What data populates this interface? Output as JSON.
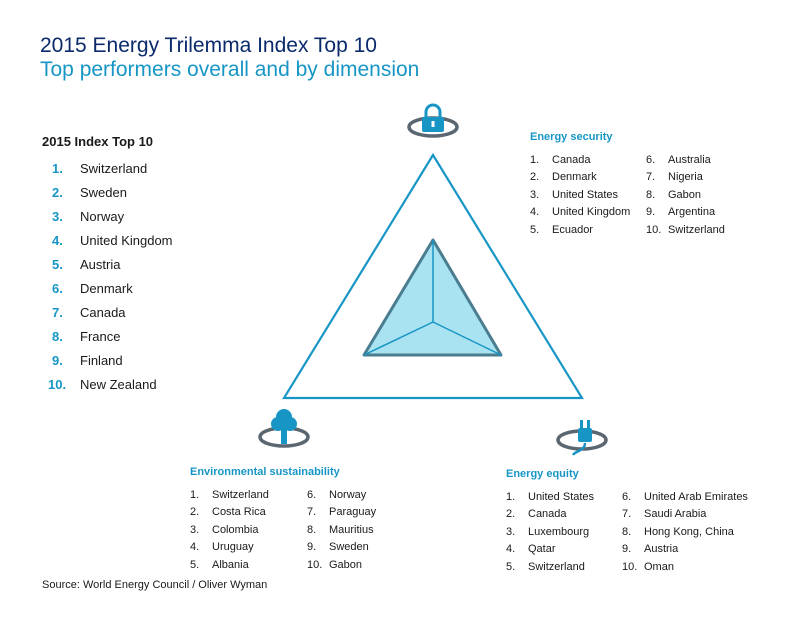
{
  "header": {
    "title": "2015 Energy Trilemma Index Top 10",
    "subtitle": "Top performers overall and by dimension"
  },
  "index_top10": {
    "heading": "2015 Index Top 10",
    "items": [
      {
        "num": "1.",
        "name": "Switzerland"
      },
      {
        "num": "2.",
        "name": "Sweden"
      },
      {
        "num": "3.",
        "name": "Norway"
      },
      {
        "num": "4.",
        "name": "United Kingdom"
      },
      {
        "num": "5.",
        "name": "Austria"
      },
      {
        "num": "6.",
        "name": "Denmark"
      },
      {
        "num": "7.",
        "name": "Canada"
      },
      {
        "num": "8.",
        "name": "France"
      },
      {
        "num": "9.",
        "name": "Finland"
      },
      {
        "num": "10.",
        "name": "New Zealand"
      }
    ]
  },
  "dimensions": {
    "security": {
      "title": "Energy security",
      "icon": "padlock-icon",
      "col1": [
        {
          "num": "1.",
          "name": "Canada"
        },
        {
          "num": "2.",
          "name": "Denmark"
        },
        {
          "num": "3.",
          "name": "United States"
        },
        {
          "num": "4.",
          "name": "United Kingdom"
        },
        {
          "num": "5.",
          "name": "Ecuador"
        }
      ],
      "col2": [
        {
          "num": "6.",
          "name": "Australia"
        },
        {
          "num": "7.",
          "name": "Nigeria"
        },
        {
          "num": "8.",
          "name": "Gabon"
        },
        {
          "num": "9.",
          "name": "Argentina"
        },
        {
          "num": "10.",
          "name": "Switzerland"
        }
      ]
    },
    "environment": {
      "title": "Environmental sustainability",
      "icon": "tree-icon",
      "col1": [
        {
          "num": "1.",
          "name": "Switzerland"
        },
        {
          "num": "2.",
          "name": "Costa Rica"
        },
        {
          "num": "3.",
          "name": "Colombia"
        },
        {
          "num": "4.",
          "name": "Uruguay"
        },
        {
          "num": "5.",
          "name": "Albania"
        }
      ],
      "col2": [
        {
          "num": "6.",
          "name": "Norway"
        },
        {
          "num": "7.",
          "name": "Paraguay"
        },
        {
          "num": "8.",
          "name": "Mauritius"
        },
        {
          "num": "9.",
          "name": "Sweden"
        },
        {
          "num": "10.",
          "name": "Gabon"
        }
      ]
    },
    "equity": {
      "title": "Energy equity",
      "icon": "plug-icon",
      "col1": [
        {
          "num": "1.",
          "name": "United States"
        },
        {
          "num": "2.",
          "name": "Canada"
        },
        {
          "num": "3.",
          "name": "Luxembourg"
        },
        {
          "num": "4.",
          "name": "Qatar"
        },
        {
          "num": "5.",
          "name": "Switzerland"
        }
      ],
      "col2": [
        {
          "num": "6.",
          "name": "United Arab Emirates"
        },
        {
          "num": "7.",
          "name": "Saudi Arabia"
        },
        {
          "num": "8.",
          "name": "Hong Kong, China"
        },
        {
          "num": "9.",
          "name": "Austria"
        },
        {
          "num": "10.",
          "name": "Oman"
        }
      ]
    }
  },
  "colors": {
    "title": "#0a2a6b",
    "accent": "#1796c6",
    "fill": "#a9e2f0",
    "outline": "#4a7d8f"
  },
  "source": "Source: World Energy Council / Oliver Wyman"
}
